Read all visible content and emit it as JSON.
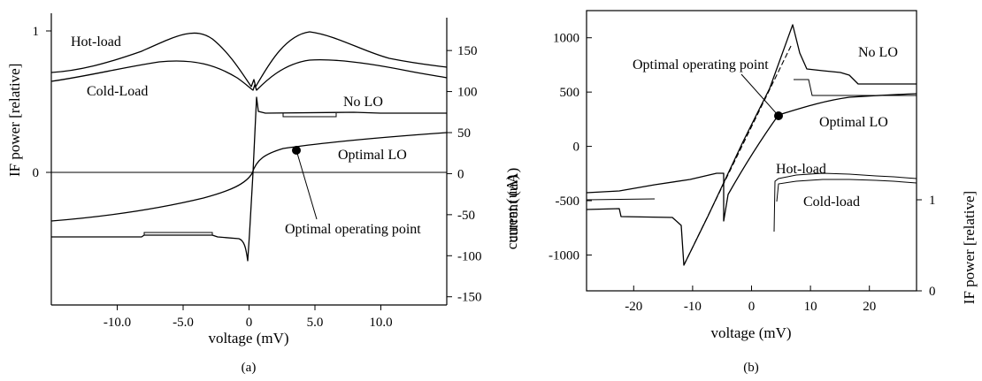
{
  "chart_data": [
    {
      "panel": "(a)",
      "type": "line",
      "xlabel": "voltage (mV)",
      "ylabel_left": "IF power [relative]",
      "ylabel_right": "current (uA)",
      "x_ticks": [
        "-10.0",
        "-5.0",
        "0",
        "5.0",
        "10.0"
      ],
      "x_tick_values": [
        -10,
        -5,
        0,
        5,
        10
      ],
      "xlim": [
        -15,
        15
      ],
      "y_left_ticks": [
        "1",
        "0"
      ],
      "y_left_tick_values": [
        1,
        0
      ],
      "y_right_ticks": [
        "150",
        "100",
        "50",
        "0",
        "-50",
        "-100",
        "-150"
      ],
      "y_right_tick_values": [
        150,
        100,
        50,
        0,
        -50,
        -100,
        -150
      ],
      "ylim_right": [
        -160,
        190
      ],
      "series": [
        {
          "name": "Hot-load",
          "axis": "left",
          "x": [
            -15,
            -12,
            -9,
            -6,
            -4,
            -2,
            -0.5,
            0,
            0.5,
            2,
            4,
            6,
            9,
            12,
            15
          ],
          "y": [
            0.76,
            0.82,
            0.88,
            0.96,
            1.0,
            0.9,
            0.72,
            0.63,
            0.72,
            0.9,
            1.0,
            0.96,
            0.88,
            0.82,
            0.76
          ]
        },
        {
          "name": "Cold-Load",
          "axis": "left",
          "x": [
            -15,
            -12,
            -9,
            -6,
            -4,
            -2,
            -0.5,
            0,
            0.5,
            2,
            4,
            6,
            9,
            12,
            15
          ],
          "y": [
            0.68,
            0.71,
            0.75,
            0.78,
            0.79,
            0.74,
            0.66,
            0.62,
            0.66,
            0.74,
            0.79,
            0.78,
            0.75,
            0.71,
            0.68
          ]
        },
        {
          "name": "No LO",
          "axis": "right",
          "x": [
            -15,
            -10,
            -5,
            -2,
            -1,
            -0.5,
            0,
            0.5,
            1,
            5,
            10,
            15
          ],
          "y": [
            -88,
            -89,
            -90,
            -92,
            -96,
            -105,
            0,
            105,
            96,
            92,
            89,
            88
          ]
        },
        {
          "name": "Optimal LO",
          "axis": "right",
          "x": [
            -15,
            -10,
            -5,
            -2,
            -0.5,
            0,
            0.5,
            2,
            5,
            10,
            15
          ],
          "y": [
            -60,
            -50,
            -38,
            -26,
            -15,
            0,
            15,
            25,
            30,
            36,
            42
          ]
        }
      ],
      "annotations": [
        "Hot-load",
        "Cold-Load",
        "No LO",
        "Optimal LO",
        "Optimal operating point"
      ],
      "marker": {
        "label": "Optimal operating point",
        "x": 3.2,
        "y": 28
      }
    },
    {
      "panel": "(b)",
      "type": "line",
      "xlabel": "voltage (mV)",
      "ylabel_left": "current (uA)",
      "ylabel_right": "IF power [relative]",
      "x_ticks": [
        "-20",
        "-10",
        "0",
        "10",
        "20"
      ],
      "x_tick_values": [
        -20,
        -10,
        0,
        10,
        20
      ],
      "xlim": [
        -28,
        28
      ],
      "y_left_ticks": [
        "1000",
        "500",
        "0",
        "-500",
        "-1000"
      ],
      "y_left_tick_values": [
        1000,
        500,
        0,
        -500,
        -1000
      ],
      "ylim_left": [
        -1330,
        1250
      ],
      "y_right_ticks": [
        "1",
        "0"
      ],
      "y_right_tick_values": [
        1,
        0
      ],
      "series": [
        {
          "name": "No LO",
          "axis": "left",
          "x": [
            -28,
            -20,
            -12,
            -9,
            -8,
            0,
            6.2,
            7,
            10,
            15,
            20,
            28
          ],
          "y": [
            -580,
            -600,
            -620,
            -700,
            -1110,
            0,
            1120,
            900,
            700,
            660,
            620,
            600
          ]
        },
        {
          "name": "Optimal LO",
          "axis": "left",
          "x": [
            -28,
            -20,
            -10,
            -6,
            -5.5,
            0,
            3.5,
            5,
            10,
            20,
            28
          ],
          "y": [
            -420,
            -390,
            -330,
            -290,
            -300,
            0,
            290,
            340,
            400,
            440,
            460
          ]
        },
        {
          "name": "Hot-load",
          "axis": "right",
          "x": [
            3.5,
            4,
            6,
            10,
            15,
            20,
            28
          ],
          "y": [
            0.86,
            0.9,
            0.93,
            0.95,
            0.94,
            0.93,
            0.91
          ]
        },
        {
          "name": "Cold-load",
          "axis": "right",
          "x": [
            3.5,
            4,
            6,
            10,
            15,
            20,
            28
          ],
          "y": [
            0.84,
            0.87,
            0.9,
            0.91,
            0.92,
            0.91,
            0.9
          ]
        }
      ],
      "annotations": [
        "No LO",
        "Optimal operating point",
        "Optimal LO",
        "Hot-load",
        "Cold-load"
      ],
      "marker": {
        "label": "Optimal operating point",
        "x": 3.5,
        "y": 290
      }
    }
  ],
  "labels": {
    "a": {
      "panel": "(a)",
      "xlabel": "voltage (mV)",
      "ylabel_left": "IF power [relative]",
      "ylabel_right": "current (uA)",
      "hot": "Hot-load",
      "cold": "Cold-Load",
      "nolo": "No LO",
      "optlo": "Optimal LO",
      "oop": "Optimal operating point"
    },
    "b": {
      "panel": "(b)",
      "xlabel": "voltage (mV)",
      "ylabel_left": "current (uA)",
      "ylabel_right": "IF power [relative]",
      "hot": "Hot-load",
      "cold": "Cold-load",
      "nolo": "No LO",
      "optlo": "Optimal LO",
      "oop": "Optimal operating point"
    }
  }
}
